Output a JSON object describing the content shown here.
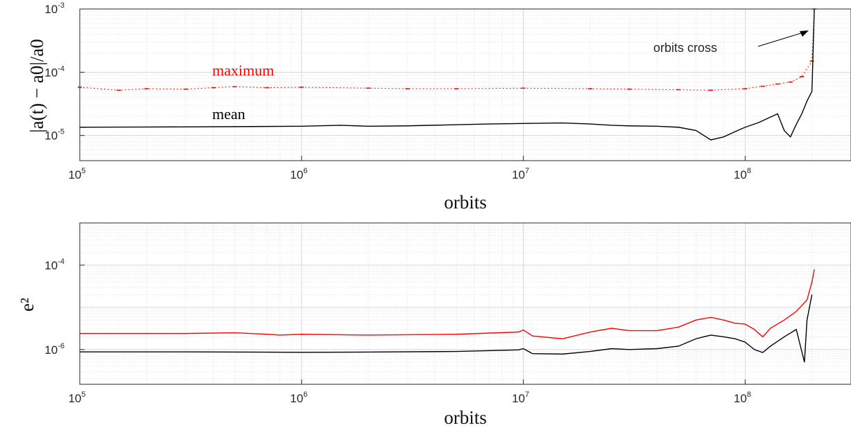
{
  "chart_data": [
    {
      "type": "line",
      "panel": "top",
      "xscale": "log",
      "yscale": "log",
      "xlim": [
        100000,
        300000000
      ],
      "ylim": [
        4e-06,
        0.001
      ],
      "xlabel": "orbits",
      "ylabel": "|a(t) − a0|/a0",
      "grid": true,
      "x_ticks": [
        {
          "value": 100000,
          "base": "10",
          "exp": "5"
        },
        {
          "value": 1000000,
          "base": "10",
          "exp": "6"
        },
        {
          "value": 10000000,
          "base": "10",
          "exp": "7"
        },
        {
          "value": 100000000,
          "base": "10",
          "exp": "8"
        }
      ],
      "y_ticks": [
        {
          "value": 1e-05,
          "base": "10",
          "exp": "-5"
        },
        {
          "value": 0.0001,
          "base": "10",
          "exp": "-4"
        },
        {
          "value": 0.001,
          "base": "10",
          "exp": "-3"
        }
      ],
      "series": [
        {
          "name": "maximum",
          "color": "#ff0000",
          "style": "dots",
          "x": [
            100000,
            150000,
            200000,
            300000,
            400000,
            500000,
            700000,
            1000000,
            2000000,
            3000000,
            5000000,
            10000000,
            20000000,
            30000000,
            50000000,
            70000000,
            100000000,
            120000000,
            140000000,
            160000000,
            180000000,
            200000000,
            205000000
          ],
          "y": [
            5.8e-05,
            5.2e-05,
            5.5e-05,
            5.4e-05,
            5.7e-05,
            5.9e-05,
            5.7e-05,
            5.8e-05,
            5.6e-05,
            5.5e-05,
            5.5e-05,
            5.6e-05,
            5.5e-05,
            5.4e-05,
            5.3e-05,
            5.2e-05,
            5.5e-05,
            6e-05,
            6.5e-05,
            7e-05,
            8.5e-05,
            0.00015,
            0.001
          ]
        },
        {
          "name": "mean",
          "color": "#000000",
          "style": "line",
          "x": [
            100000,
            200000,
            500000,
            1000000,
            1500000,
            2000000,
            3000000,
            5000000,
            7000000,
            10000000,
            15000000,
            20000000,
            25000000,
            30000000,
            40000000,
            50000000,
            60000000,
            70000000,
            80000000,
            90000000,
            100000000,
            115000000,
            130000000,
            140000000,
            150000000,
            160000000,
            170000000,
            180000000,
            190000000,
            200000000,
            205000000
          ],
          "y": [
            1.35e-05,
            1.36e-05,
            1.38e-05,
            1.4e-05,
            1.45e-05,
            1.4e-05,
            1.42e-05,
            1.48e-05,
            1.52e-05,
            1.55e-05,
            1.58e-05,
            1.52e-05,
            1.45e-05,
            1.42e-05,
            1.4e-05,
            1.35e-05,
            1.2e-05,
            8.5e-06,
            9.5e-06,
            1.15e-05,
            1.35e-05,
            1.6e-05,
            1.95e-05,
            2.2e-05,
            1.2e-05,
            9.5e-06,
            1.5e-05,
            2.2e-05,
            3.5e-05,
            5e-05,
            0.001
          ]
        }
      ],
      "annotations": [
        {
          "text": "maximum",
          "color": "#ff0000"
        },
        {
          "text": "mean",
          "color": "#000000"
        },
        {
          "text": "orbits cross",
          "color": "#262626",
          "arrow_to": [
            185000000,
            0.00055
          ]
        }
      ]
    },
    {
      "type": "line",
      "panel": "bottom",
      "xscale": "log",
      "yscale": "log",
      "xlim": [
        100000,
        300000000
      ],
      "ylim": [
        1.5e-07,
        0.001
      ],
      "xlabel": "orbits",
      "ylabel": "e²",
      "grid": true,
      "x_ticks": [
        {
          "value": 100000,
          "base": "10",
          "exp": "5"
        },
        {
          "value": 1000000,
          "base": "10",
          "exp": "6"
        },
        {
          "value": 10000000,
          "base": "10",
          "exp": "7"
        },
        {
          "value": 100000000,
          "base": "10",
          "exp": "8"
        }
      ],
      "y_ticks": [
        {
          "value": 1e-06,
          "base": "10",
          "exp": "-6"
        },
        {
          "value": 0.0001,
          "base": "10",
          "exp": "-4"
        }
      ],
      "series": [
        {
          "color": "#ff0000",
          "style": "line",
          "x": [
            100000,
            200000,
            300000,
            500000,
            700000,
            800000,
            1000000,
            2000000,
            5000000,
            9500000,
            10000000,
            11000000,
            15000000,
            20000000,
            25000000,
            30000000,
            40000000,
            50000000,
            60000000,
            70000000,
            80000000,
            90000000,
            100000000,
            110000000,
            120000000,
            130000000,
            150000000,
            170000000,
            190000000,
            200000000,
            205000000
          ],
          "y": [
            2.4e-06,
            2.4e-06,
            2.4e-06,
            2.5e-06,
            2.3e-06,
            2.2e-06,
            2.3e-06,
            2.2e-06,
            2.3e-06,
            2.6e-06,
            2.9e-06,
            2.1e-06,
            1.8e-06,
            2.6e-06,
            3.2e-06,
            2.8e-06,
            2.8e-06,
            3.4e-06,
            5e-06,
            5.8e-06,
            5e-06,
            4.2e-06,
            4e-06,
            3e-06,
            2e-06,
            3.2e-06,
            5e-06,
            8e-06,
            1.5e-05,
            4e-05,
            8e-05
          ]
        },
        {
          "color": "#000000",
          "style": "line",
          "x": [
            100000,
            300000,
            1000000,
            2000000,
            5000000,
            9500000,
            10000000,
            11000000,
            15000000,
            20000000,
            25000000,
            30000000,
            40000000,
            50000000,
            60000000,
            70000000,
            80000000,
            90000000,
            100000000,
            110000000,
            120000000,
            130000000,
            150000000,
            170000000,
            185000000,
            190000000,
            200000000
          ],
          "y": [
            8.8e-07,
            8.8e-07,
            8.6e-07,
            8.7e-07,
            9e-07,
            9.8e-07,
            1.05e-06,
            8e-07,
            7.8e-07,
            9e-07,
            1.05e-06,
            1e-06,
            1.05e-06,
            1.2e-06,
            1.8e-06,
            2.2e-06,
            2e-06,
            1.8e-06,
            1.5e-06,
            1e-06,
            8.5e-07,
            1.2e-06,
            2e-06,
            3e-06,
            5e-07,
            5e-06,
            2e-05
          ]
        }
      ]
    }
  ]
}
